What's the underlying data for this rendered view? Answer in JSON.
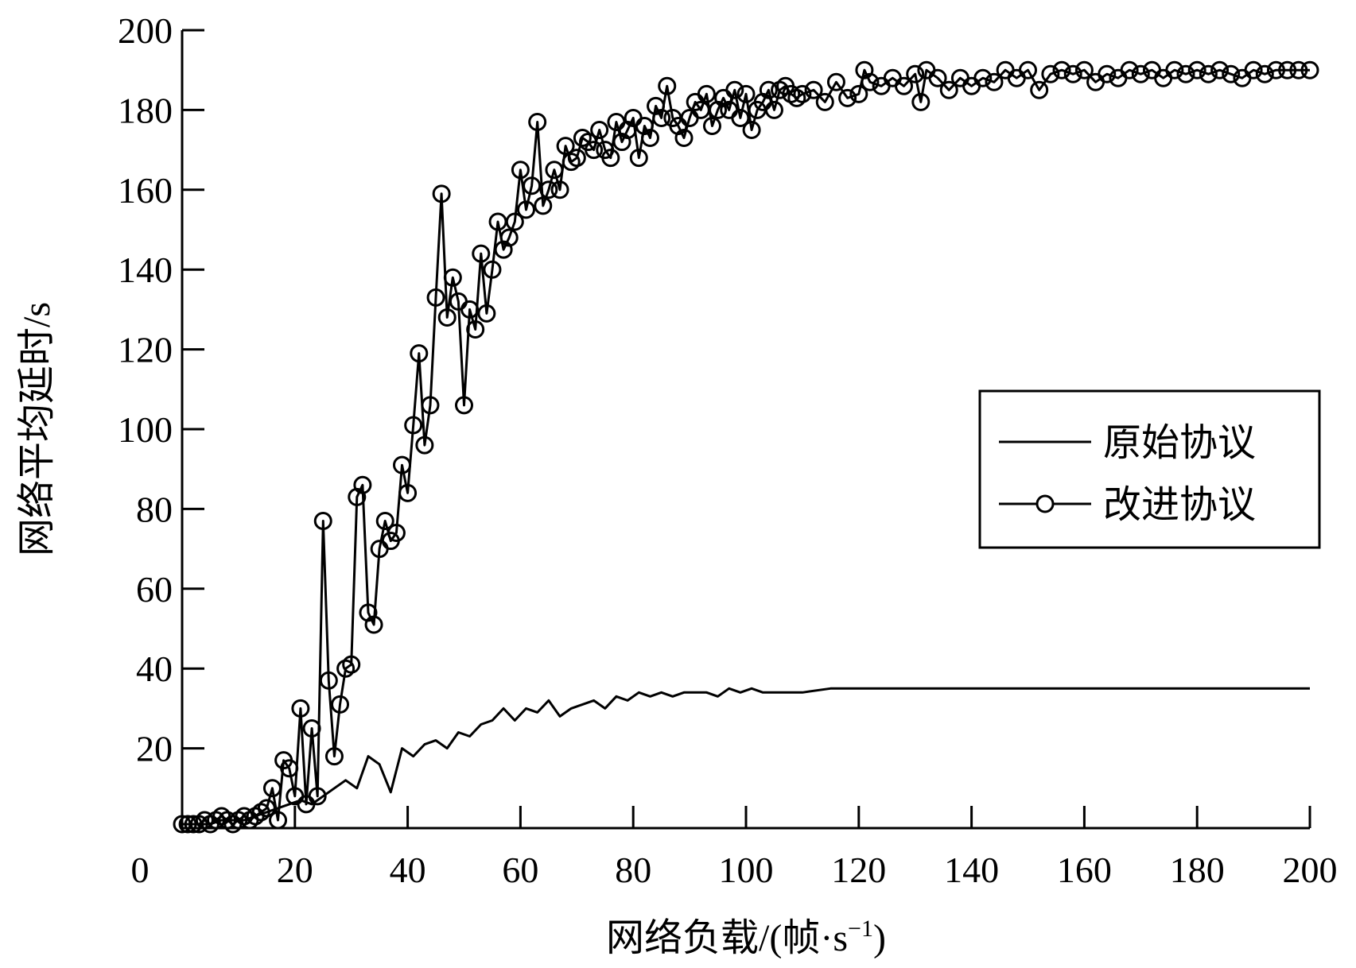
{
  "chart_data": {
    "type": "line",
    "title": "",
    "xlabel": "网络负载/(帧·s",
    "xlabel_sup": "−1",
    "xlabel_close": ")",
    "ylabel": "网络平均延时/s",
    "xlim": [
      0,
      200
    ],
    "ylim": [
      0,
      200
    ],
    "x_ticks": [
      0,
      20,
      40,
      60,
      80,
      100,
      120,
      140,
      160,
      180,
      200
    ],
    "y_ticks": [
      20,
      40,
      60,
      80,
      100,
      120,
      140,
      160,
      180,
      200
    ],
    "x_tick_labels": [
      "0",
      "20",
      "40",
      "60",
      "80",
      "100",
      "120",
      "140",
      "160",
      "180",
      "200"
    ],
    "y_tick_labels": [
      "20",
      "40",
      "60",
      "80",
      "100",
      "120",
      "140",
      "160",
      "180",
      "200"
    ],
    "grid": false,
    "legend_position": "right-middle",
    "series": [
      {
        "name": "原始协议",
        "marker": "none",
        "color": "#000000",
        "x": [
          1,
          3,
          5,
          7,
          9,
          11,
          13,
          15,
          17,
          19,
          21,
          23,
          25,
          27,
          29,
          31,
          33,
          35,
          37,
          39,
          41,
          43,
          45,
          47,
          49,
          51,
          53,
          55,
          57,
          59,
          61,
          63,
          65,
          67,
          69,
          71,
          73,
          75,
          77,
          79,
          81,
          83,
          85,
          87,
          89,
          91,
          93,
          95,
          97,
          99,
          101,
          103,
          105,
          110,
          115,
          120,
          125,
          130,
          135,
          140,
          145,
          150,
          155,
          160,
          165,
          170,
          175,
          180,
          185,
          190,
          195,
          200
        ],
        "y": [
          1,
          1,
          1,
          2,
          2,
          2,
          3,
          4,
          5,
          6,
          7,
          6,
          8,
          10,
          12,
          10,
          18,
          16,
          9,
          20,
          18,
          21,
          22,
          20,
          24,
          23,
          26,
          27,
          30,
          27,
          30,
          29,
          32,
          28,
          30,
          31,
          32,
          30,
          33,
          32,
          34,
          33,
          34,
          33,
          34,
          34,
          34,
          33,
          35,
          34,
          35,
          34,
          34,
          34,
          35,
          35,
          35,
          35,
          35,
          35,
          35,
          35,
          35,
          35,
          35,
          35,
          35,
          35,
          35,
          35,
          35,
          35
        ]
      },
      {
        "name": "改进协议",
        "marker": "circle",
        "color": "#000000",
        "x": [
          0,
          1,
          2,
          3,
          4,
          5,
          6,
          7,
          8,
          9,
          10,
          11,
          12,
          13,
          14,
          15,
          16,
          17,
          18,
          19,
          20,
          21,
          22,
          23,
          24,
          25,
          26,
          27,
          28,
          29,
          30,
          31,
          32,
          33,
          34,
          35,
          36,
          37,
          38,
          39,
          40,
          41,
          42,
          43,
          44,
          45,
          46,
          47,
          48,
          49,
          50,
          51,
          52,
          53,
          54,
          55,
          56,
          57,
          58,
          59,
          60,
          61,
          62,
          63,
          64,
          65,
          66,
          67,
          68,
          69,
          70,
          71,
          72,
          73,
          74,
          75,
          76,
          77,
          78,
          79,
          80,
          81,
          82,
          83,
          84,
          85,
          86,
          87,
          88,
          89,
          90,
          91,
          92,
          93,
          94,
          95,
          96,
          97,
          98,
          99,
          100,
          101,
          102,
          103,
          104,
          105,
          106,
          107,
          108,
          109,
          110,
          112,
          114,
          116,
          118,
          120,
          121,
          122,
          124,
          126,
          128,
          130,
          131,
          132,
          134,
          136,
          138,
          140,
          142,
          144,
          146,
          148,
          150,
          152,
          154,
          156,
          158,
          160,
          162,
          164,
          166,
          168,
          170,
          172,
          174,
          176,
          178,
          180,
          182,
          184,
          186,
          188,
          190,
          192,
          194,
          196,
          198,
          200
        ],
        "y": [
          1,
          1,
          1,
          1,
          2,
          1,
          2,
          3,
          2,
          1,
          2,
          3,
          2,
          3,
          4,
          5,
          10,
          2,
          17,
          15,
          8,
          30,
          6,
          25,
          8,
          77,
          37,
          18,
          31,
          40,
          41,
          83,
          86,
          54,
          51,
          70,
          77,
          72,
          74,
          91,
          84,
          101,
          119,
          96,
          106,
          133,
          159,
          128,
          138,
          132,
          106,
          130,
          125,
          144,
          129,
          140,
          152,
          145,
          148,
          152,
          165,
          155,
          161,
          177,
          156,
          160,
          165,
          160,
          171,
          167,
          168,
          173,
          172,
          170,
          175,
          170,
          168,
          177,
          172,
          175,
          178,
          168,
          176,
          173,
          181,
          178,
          186,
          178,
          176,
          173,
          178,
          182,
          180,
          184,
          176,
          180,
          183,
          180,
          185,
          178,
          184,
          175,
          180,
          182,
          185,
          180,
          185,
          186,
          184,
          183,
          184,
          185,
          182,
          187,
          183,
          184,
          190,
          187,
          186,
          188,
          186,
          189,
          182,
          190,
          188,
          185,
          188,
          186,
          188,
          187,
          190,
          188,
          190,
          185,
          189,
          190,
          189,
          190,
          187,
          189,
          188,
          190,
          189,
          190,
          188,
          190,
          189,
          190,
          189,
          190,
          189,
          188,
          190,
          189,
          190,
          190,
          190,
          190
        ]
      }
    ]
  }
}
